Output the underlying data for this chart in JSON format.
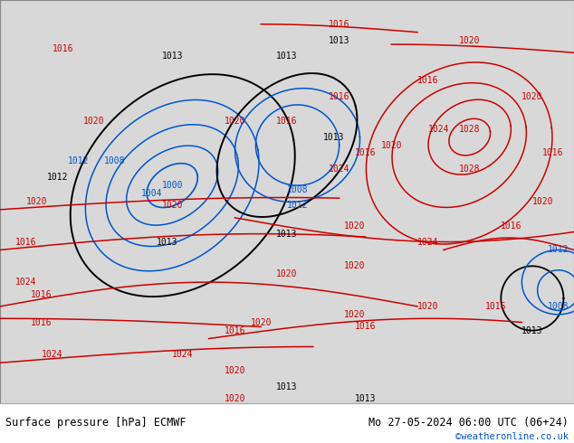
{
  "title_left": "Surface pressure [hPa] ECMWF",
  "title_right": "Mo 27-05-2024 06:00 UTC (06+24)",
  "copyright": "©weatheronline.co.uk",
  "land_color": "#aad4a0",
  "sea_color": "#d8d8d8",
  "bg_color": "#d8d8d8",
  "border_color": "#888888",
  "text_color_black": "#000000",
  "text_color_blue": "#0055cc",
  "text_color_red": "#cc0000",
  "bottom_bar_color": "#ffffff",
  "figsize": [
    6.34,
    4.9
  ],
  "dpi": 100,
  "extent": [
    -60,
    50,
    25,
    75
  ]
}
